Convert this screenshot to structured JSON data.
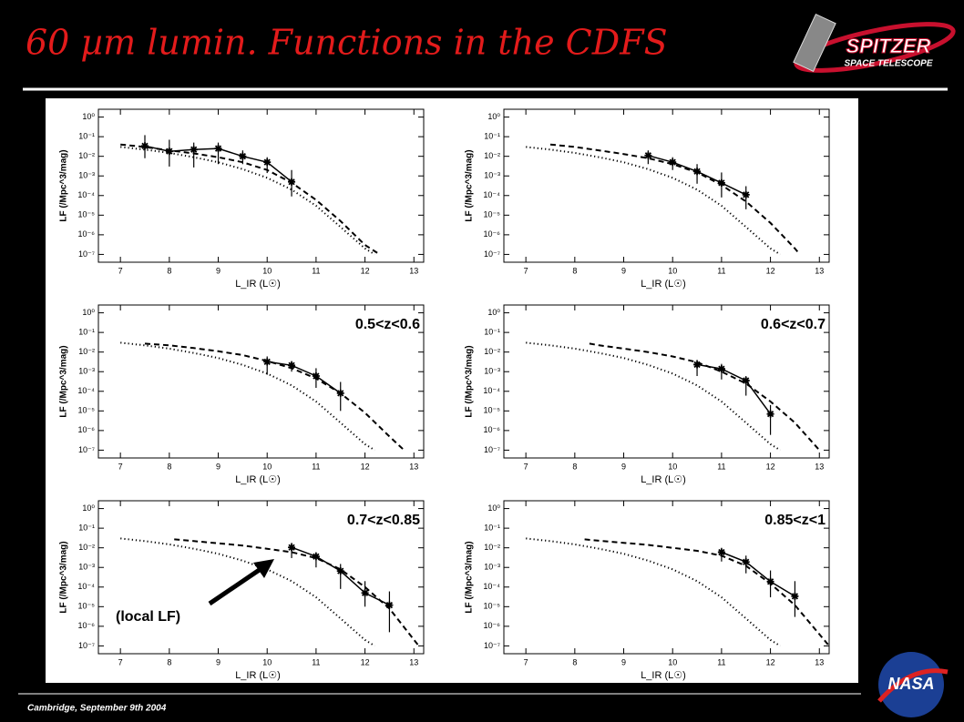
{
  "slide": {
    "title": "60 µm lumin. Functions in the CDFS",
    "footer": "Cambridge, September 9th 2004",
    "logos": {
      "spitzer": "SPITZER",
      "spitzer_sub": "SPACE TELESCOPE",
      "nasa": "NASA"
    }
  },
  "chart_data": [
    {
      "type": "line",
      "xlabel": "L_IR (L☉)",
      "ylabel": "LF (/Mpc^3/mag)",
      "ylog": true,
      "xlim": [
        6.55,
        13.2
      ],
      "xticks": [
        7,
        8,
        9,
        10,
        11,
        12,
        13
      ],
      "ylim": [
        4e-08,
        2.5
      ],
      "yticks": [
        {
          "value": 1,
          "label": "10⁰"
        },
        {
          "value": 0.1,
          "label": "10⁻¹"
        },
        {
          "value": 0.01,
          "label": "10⁻²"
        },
        {
          "value": 0.001,
          "label": "10⁻³"
        },
        {
          "value": 0.0001,
          "label": "10⁻⁴"
        },
        {
          "value": 1e-05,
          "label": "10⁻⁵"
        },
        {
          "value": 1e-06,
          "label": "10⁻⁶"
        },
        {
          "value": 1e-07,
          "label": "10⁻⁷"
        }
      ],
      "series": [
        {
          "style": "solid",
          "color": "#000000",
          "marker": "star",
          "x": [
            7.5,
            8,
            8.5,
            9,
            9.5,
            10,
            10.5
          ],
          "values": [
            0.034,
            0.018,
            0.022,
            0.025,
            0.01,
            0.005,
            0.0005
          ],
          "err_low": [
            0.008,
            0.003,
            0.0027,
            0.004,
            0.004,
            0.0014,
            9e-05
          ],
          "err_high": [
            0.12,
            0.07,
            0.05,
            0.05,
            0.02,
            0.009,
            0.002
          ]
        },
        {
          "style": "dashed",
          "color": "#000000",
          "x": [
            7,
            7.5,
            8,
            8.5,
            9,
            9.5,
            10,
            10.5,
            11,
            11.5,
            12,
            12.3
          ],
          "values": [
            0.04,
            0.03,
            0.02,
            0.014,
            0.009,
            0.005,
            0.002,
            0.00045,
            6e-05,
            5e-06,
            3e-07,
            1e-07
          ]
        },
        {
          "style": "dotted",
          "color": "#000000",
          "x": [
            7,
            7.5,
            8,
            8.5,
            9,
            9.5,
            10,
            10.5,
            11,
            11.5,
            12,
            12.2
          ],
          "values": [
            0.03,
            0.022,
            0.015,
            0.009,
            0.005,
            0.0022,
            0.0008,
            0.0002,
            3e-05,
            2.5e-06,
            2e-07,
            1e-07
          ]
        }
      ]
    },
    {
      "type": "line",
      "xlabel": "L_IR (L☉)",
      "ylabel": "LF (/Mpc^3/mag)",
      "ylog": true,
      "xlim": [
        6.55,
        13.2
      ],
      "xticks": [
        7,
        8,
        9,
        10,
        11,
        12,
        13
      ],
      "ylim": [
        4e-08,
        2.5
      ],
      "yticks": [
        {
          "value": 1,
          "label": "10⁰"
        },
        {
          "value": 0.1,
          "label": "10⁻¹"
        },
        {
          "value": 0.01,
          "label": "10⁻²"
        },
        {
          "value": 0.001,
          "label": "10⁻³"
        },
        {
          "value": 0.0001,
          "label": "10⁻⁴"
        },
        {
          "value": 1e-05,
          "label": "10⁻⁵"
        },
        {
          "value": 1e-06,
          "label": "10⁻⁶"
        },
        {
          "value": 1e-07,
          "label": "10⁻⁷"
        }
      ],
      "series": [
        {
          "style": "solid",
          "color": "#000000",
          "marker": "star",
          "x": [
            9.5,
            10,
            10.5,
            11,
            11.5
          ],
          "values": [
            0.011,
            0.005,
            0.0017,
            0.00044,
            0.00011
          ],
          "err_low": [
            0.004,
            0.002,
            0.0004,
            8e-05,
            2e-05
          ],
          "err_high": [
            0.02,
            0.009,
            0.004,
            0.0015,
            0.0003
          ]
        },
        {
          "style": "dashed",
          "color": "#000000",
          "x": [
            7.5,
            8,
            8.5,
            9,
            9.5,
            10,
            10.5,
            11,
            11.5,
            12,
            12.5,
            12.6
          ],
          "values": [
            0.04,
            0.03,
            0.02,
            0.013,
            0.008,
            0.004,
            0.0015,
            0.00035,
            5e-05,
            4e-06,
            2e-07,
            1e-07
          ]
        },
        {
          "style": "dotted",
          "color": "#000000",
          "x": [
            7,
            7.5,
            8,
            8.5,
            9,
            9.5,
            10,
            10.5,
            11,
            11.5,
            12,
            12.2
          ],
          "values": [
            0.03,
            0.022,
            0.015,
            0.009,
            0.005,
            0.0022,
            0.0008,
            0.0002,
            3e-05,
            2.5e-06,
            2e-07,
            1e-07
          ]
        }
      ]
    },
    {
      "type": "line",
      "title": "0.5<z<0.6",
      "xlabel": "L_IR (L☉)",
      "ylabel": "LF (/Mpc^3/mag)",
      "ylog": true,
      "xlim": [
        6.55,
        13.2
      ],
      "xticks": [
        7,
        8,
        9,
        10,
        11,
        12,
        13
      ],
      "ylim": [
        4e-08,
        2.5
      ],
      "yticks": [
        {
          "value": 1,
          "label": "10⁰"
        },
        {
          "value": 0.1,
          "label": "10⁻¹"
        },
        {
          "value": 0.01,
          "label": "10⁻²"
        },
        {
          "value": 0.001,
          "label": "10⁻³"
        },
        {
          "value": 0.0001,
          "label": "10⁻⁴"
        },
        {
          "value": 1e-05,
          "label": "10⁻⁵"
        },
        {
          "value": 1e-06,
          "label": "10⁻⁶"
        },
        {
          "value": 1e-07,
          "label": "10⁻⁷"
        }
      ],
      "series": [
        {
          "style": "solid",
          "color": "#000000",
          "marker": "star",
          "x": [
            10,
            10.5,
            11,
            11.5
          ],
          "values": [
            0.0032,
            0.0021,
            0.0006,
            8e-05
          ],
          "err_low": [
            0.0007,
            0.001,
            0.00015,
            1e-05
          ],
          "err_high": [
            0.006,
            0.0035,
            0.0015,
            0.0003
          ]
        },
        {
          "style": "dashed",
          "color": "#000000",
          "x": [
            7.5,
            8,
            8.5,
            9,
            9.5,
            10,
            10.5,
            11,
            11.5,
            12,
            12.5,
            12.8
          ],
          "values": [
            0.027,
            0.022,
            0.016,
            0.011,
            0.007,
            0.0035,
            0.0015,
            0.00045,
            8e-05,
            8e-06,
            5e-07,
            1e-07
          ]
        },
        {
          "style": "dotted",
          "color": "#000000",
          "x": [
            7,
            7.5,
            8,
            8.5,
            9,
            9.5,
            10,
            10.5,
            11,
            11.5,
            12,
            12.2
          ],
          "values": [
            0.03,
            0.022,
            0.015,
            0.009,
            0.005,
            0.0022,
            0.0008,
            0.0002,
            3e-05,
            2.5e-06,
            2e-07,
            1e-07
          ]
        }
      ]
    },
    {
      "type": "line",
      "title": "0.6<z<0.7",
      "xlabel": "L_IR (L☉)",
      "ylabel": "LF (/Mpc^3/mag)",
      "ylog": true,
      "xlim": [
        6.55,
        13.2
      ],
      "xticks": [
        7,
        8,
        9,
        10,
        11,
        12,
        13
      ],
      "ylim": [
        4e-08,
        2.5
      ],
      "yticks": [
        {
          "value": 1,
          "label": "10⁰"
        },
        {
          "value": 0.1,
          "label": "10⁻¹"
        },
        {
          "value": 0.01,
          "label": "10⁻²"
        },
        {
          "value": 0.001,
          "label": "10⁻³"
        },
        {
          "value": 0.0001,
          "label": "10⁻⁴"
        },
        {
          "value": 1e-05,
          "label": "10⁻⁵"
        },
        {
          "value": 1e-06,
          "label": "10⁻⁶"
        },
        {
          "value": 1e-07,
          "label": "10⁻⁷"
        }
      ],
      "series": [
        {
          "style": "solid",
          "color": "#000000",
          "marker": "star",
          "x": [
            10.5,
            11,
            11.5,
            12
          ],
          "values": [
            0.0023,
            0.0014,
            0.00035,
            7e-06
          ],
          "err_low": [
            0.0006,
            0.0004,
            6e-05,
            6e-07
          ],
          "err_high": [
            0.004,
            0.0025,
            0.0006,
            2e-05
          ]
        },
        {
          "style": "dashed",
          "color": "#000000",
          "x": [
            8.3,
            8.5,
            9,
            9.5,
            10,
            10.5,
            11,
            11.5,
            12,
            12.5,
            13
          ],
          "values": [
            0.027,
            0.022,
            0.015,
            0.01,
            0.006,
            0.003,
            0.001,
            0.00025,
            3e-05,
            2.5e-06,
            1e-07
          ]
        },
        {
          "style": "dotted",
          "color": "#000000",
          "x": [
            7,
            7.5,
            8,
            8.5,
            9,
            9.5,
            10,
            10.5,
            11,
            11.5,
            12,
            12.2
          ],
          "values": [
            0.03,
            0.022,
            0.015,
            0.009,
            0.005,
            0.0022,
            0.0008,
            0.0002,
            3e-05,
            2.5e-06,
            2e-07,
            1e-07
          ]
        }
      ]
    },
    {
      "type": "line",
      "title": "0.7<z<0.85",
      "annotation": "(local LF)",
      "xlabel": "L_IR (L☉)",
      "ylabel": "LF (/Mpc^3/mag)",
      "ylog": true,
      "xlim": [
        6.55,
        13.2
      ],
      "xticks": [
        7,
        8,
        9,
        10,
        11,
        12,
        13
      ],
      "ylim": [
        4e-08,
        2.5
      ],
      "yticks": [
        {
          "value": 1,
          "label": "10⁰"
        },
        {
          "value": 0.1,
          "label": "10⁻¹"
        },
        {
          "value": 0.01,
          "label": "10⁻²"
        },
        {
          "value": 0.001,
          "label": "10⁻³"
        },
        {
          "value": 0.0001,
          "label": "10⁻⁴"
        },
        {
          "value": 1e-05,
          "label": "10⁻⁵"
        },
        {
          "value": 1e-06,
          "label": "10⁻⁶"
        },
        {
          "value": 1e-07,
          "label": "10⁻⁷"
        }
      ],
      "series": [
        {
          "style": "solid",
          "color": "#000000",
          "marker": "star",
          "x": [
            10.5,
            11,
            11.5,
            12,
            12.5
          ],
          "values": [
            0.0105,
            0.0036,
            0.00066,
            5e-05,
            1.2e-05
          ],
          "err_low": [
            0.003,
            0.001,
            8e-05,
            1e-05,
            5e-07
          ],
          "err_high": [
            0.018,
            0.006,
            0.0015,
            0.0002,
            6e-05
          ]
        },
        {
          "style": "dashed",
          "color": "#000000",
          "x": [
            8.1,
            8.5,
            9,
            9.5,
            10,
            10.5,
            11,
            11.5,
            12,
            12.5,
            13.1
          ],
          "values": [
            0.027,
            0.022,
            0.017,
            0.013,
            0.009,
            0.006,
            0.003,
            0.0008,
            0.0001,
            8e-06,
            1e-07
          ]
        },
        {
          "style": "dotted",
          "color": "#000000",
          "x": [
            7,
            7.5,
            8,
            8.5,
            9,
            9.5,
            10,
            10.5,
            11,
            11.5,
            12,
            12.2
          ],
          "values": [
            0.03,
            0.022,
            0.015,
            0.009,
            0.005,
            0.0022,
            0.0008,
            0.0002,
            3e-05,
            2.5e-06,
            2e-07,
            1e-07
          ]
        }
      ]
    },
    {
      "type": "line",
      "title": "0.85<z<1",
      "xlabel": "L_IR (L☉)",
      "ylabel": "LF (/Mpc^3/mag)",
      "ylog": true,
      "xlim": [
        6.55,
        13.2
      ],
      "xticks": [
        7,
        8,
        9,
        10,
        11,
        12,
        13
      ],
      "ylim": [
        4e-08,
        2.5
      ],
      "yticks": [
        {
          "value": 1,
          "label": "10⁰"
        },
        {
          "value": 0.1,
          "label": "10⁻¹"
        },
        {
          "value": 0.01,
          "label": "10⁻²"
        },
        {
          "value": 0.001,
          "label": "10⁻³"
        },
        {
          "value": 0.0001,
          "label": "10⁻⁴"
        },
        {
          "value": 1e-05,
          "label": "10⁻⁵"
        },
        {
          "value": 1e-06,
          "label": "10⁻⁶"
        },
        {
          "value": 1e-07,
          "label": "10⁻⁷"
        }
      ],
      "series": [
        {
          "style": "solid",
          "color": "#000000",
          "marker": "star",
          "x": [
            11,
            11.5,
            12,
            12.5
          ],
          "values": [
            0.006,
            0.0019,
            0.00019,
            3.4e-05
          ],
          "err_low": [
            0.002,
            0.0005,
            3e-05,
            3e-06
          ],
          "err_high": [
            0.01,
            0.004,
            0.0007,
            0.0002
          ]
        },
        {
          "style": "dashed",
          "color": "#000000",
          "x": [
            8.2,
            8.5,
            9,
            9.5,
            10,
            10.5,
            11,
            11.5,
            12,
            12.5,
            13.2
          ],
          "values": [
            0.027,
            0.023,
            0.018,
            0.014,
            0.01,
            0.007,
            0.004,
            0.0012,
            0.00015,
            1.2e-05,
            1e-07
          ]
        },
        {
          "style": "dotted",
          "color": "#000000",
          "x": [
            7,
            7.5,
            8,
            8.5,
            9,
            9.5,
            10,
            10.5,
            11,
            11.5,
            12,
            12.2
          ],
          "values": [
            0.03,
            0.022,
            0.015,
            0.009,
            0.005,
            0.0022,
            0.0008,
            0.0002,
            3e-05,
            2.5e-06,
            2e-07,
            1e-07
          ]
        }
      ]
    }
  ]
}
